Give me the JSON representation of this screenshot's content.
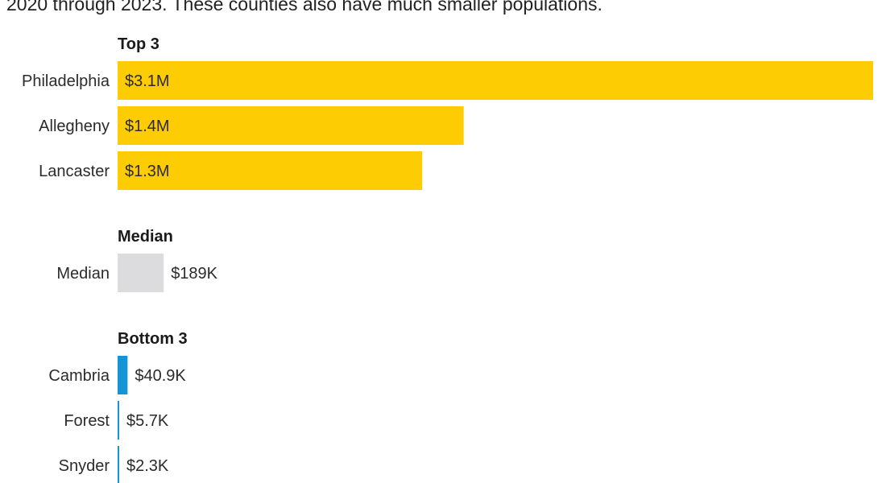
{
  "intro_text": "2020 through 2023. These counties also have much smaller populations.",
  "colors": {
    "top": "#FECC02",
    "median": "#DCDCDE",
    "bottom": "#1496D4",
    "text": "#2b2b2b"
  },
  "chart_data": {
    "type": "bar",
    "orientation": "horizontal",
    "xlim": [
      0,
      3100000
    ],
    "groups": [
      {
        "title": "Top 3",
        "color_key": "top",
        "label_inside": true,
        "bars": [
          {
            "category": "Philadelphia",
            "value": 3100000,
            "label": "$3.1M"
          },
          {
            "category": "Allegheny",
            "value": 1420000,
            "label": "$1.4M"
          },
          {
            "category": "Lancaster",
            "value": 1250000,
            "label": "$1.3M"
          }
        ]
      },
      {
        "title": "Median",
        "color_key": "median",
        "label_inside": false,
        "bars": [
          {
            "category": "Median",
            "value": 189000,
            "label": "$189K"
          }
        ]
      },
      {
        "title": "Bottom 3",
        "color_key": "bottom",
        "label_inside": false,
        "bars": [
          {
            "category": "Cambria",
            "value": 40900,
            "label": "$40.9K"
          },
          {
            "category": "Forest",
            "value": 5700,
            "label": "$5.7K"
          },
          {
            "category": "Snyder",
            "value": 2300,
            "label": "$2.3K"
          }
        ]
      }
    ]
  }
}
